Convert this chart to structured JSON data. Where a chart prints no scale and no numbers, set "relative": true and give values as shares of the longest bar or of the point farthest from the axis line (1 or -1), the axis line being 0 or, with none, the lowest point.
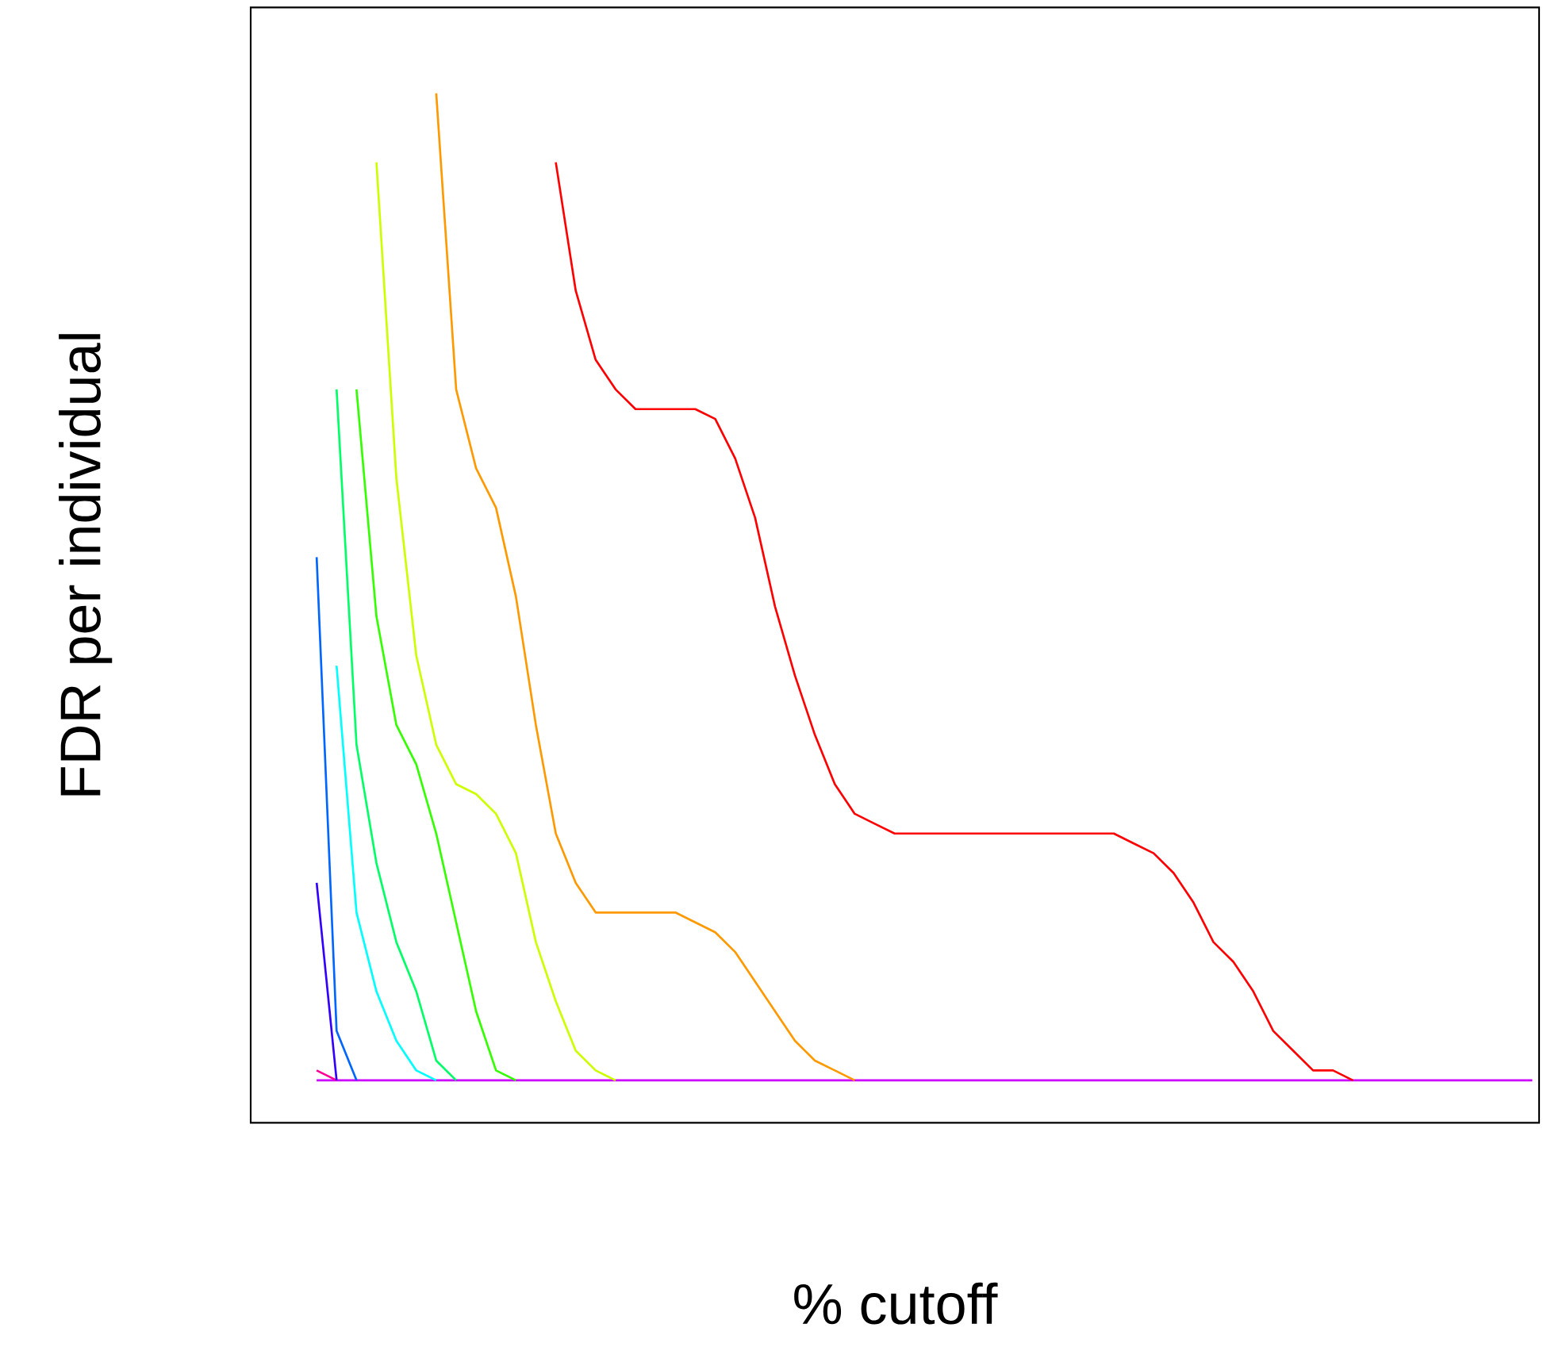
{
  "chart_data": {
    "type": "line",
    "xlabel": "% cutoff",
    "ylabel": "FDR per individual",
    "relative": true,
    "marker": "none",
    "line_style": "solid",
    "categories": [
      null,
      null,
      null,
      null,
      null,
      null,
      null,
      null,
      null,
      null,
      null,
      null,
      null,
      null,
      null,
      null,
      null,
      null,
      null,
      null,
      null,
      null,
      null,
      null,
      null,
      null,
      null,
      null,
      null,
      null,
      null,
      null,
      null,
      null,
      null,
      null,
      null,
      null,
      null,
      null,
      null,
      null,
      null,
      null,
      null,
      null,
      null,
      null,
      null,
      null,
      null,
      null,
      null,
      null,
      null,
      null,
      null,
      null,
      null,
      null,
      null,
      null,
      null
    ],
    "series": [
      {
        "color": "#ff0000",
        "values": [
          null,
          null,
          null,
          null,
          null,
          null,
          null,
          null,
          null,
          null,
          null,
          null,
          null,
          0.93,
          0.8,
          0.73,
          0.7,
          0.68,
          0.68,
          0.68,
          0.68,
          0.67,
          0.63,
          0.57,
          0.48,
          0.41,
          0.35,
          0.3,
          0.27,
          0.26,
          0.25,
          0.25,
          0.25,
          0.25,
          0.25,
          0.25,
          0.25,
          0.25,
          0.25,
          0.25,
          0.25,
          0.25,
          0.24,
          0.23,
          0.21,
          0.18,
          0.14,
          0.12,
          0.09,
          0.05,
          0.03,
          0.01,
          0.01,
          0,
          null,
          null,
          null,
          null,
          null,
          null,
          null,
          null,
          null
        ]
      },
      {
        "color": "#ff9900",
        "values": [
          null,
          null,
          null,
          null,
          null,
          null,
          null,
          1,
          0.7,
          0.62,
          0.58,
          0.49,
          0.36,
          0.25,
          0.2,
          0.17,
          0.17,
          0.17,
          0.17,
          0.17,
          0.16,
          0.15,
          0.13,
          0.1,
          0.07,
          0.04,
          0.02,
          0.01,
          0,
          null,
          null,
          null,
          null,
          null,
          null,
          null,
          null,
          null,
          null,
          null,
          null,
          null,
          null,
          null,
          null,
          null,
          null,
          null,
          null,
          null,
          null,
          null,
          null,
          null,
          null,
          null,
          null,
          null,
          null,
          null,
          null,
          null,
          null
        ]
      },
      {
        "color": "#ccff00",
        "values": [
          null,
          null,
          null,
          null,
          0.93,
          0.61,
          0.43,
          0.34,
          0.3,
          0.29,
          0.27,
          0.23,
          0.14,
          0.08,
          0.03,
          0.01,
          0,
          null,
          null,
          null,
          null,
          null,
          null,
          null,
          null,
          null,
          null,
          null,
          null,
          null,
          null,
          null,
          null,
          null,
          null,
          null,
          null,
          null,
          null,
          null,
          null,
          null,
          null,
          null,
          null,
          null,
          null,
          null,
          null,
          null,
          null,
          null,
          null,
          null,
          null,
          null,
          null,
          null,
          null,
          null,
          null,
          null,
          null
        ]
      },
      {
        "color": "#33ff00",
        "values": [
          null,
          null,
          null,
          0.7,
          0.47,
          0.36,
          0.32,
          0.25,
          0.16,
          0.07,
          0.01,
          0,
          null,
          null,
          null,
          null,
          null,
          null,
          null,
          null,
          null,
          null,
          null,
          null,
          null,
          null,
          null,
          null,
          null,
          null,
          null,
          null,
          null,
          null,
          null,
          null,
          null,
          null,
          null,
          null,
          null,
          null,
          null,
          null,
          null,
          null,
          null,
          null,
          null,
          null,
          null,
          null,
          null,
          null,
          null,
          null,
          null,
          null,
          null,
          null,
          null,
          null,
          null
        ]
      },
      {
        "color": "#00ff66",
        "values": [
          null,
          null,
          0.7,
          0.34,
          0.22,
          0.14,
          0.09,
          0.02,
          0,
          null,
          null,
          null,
          null,
          null,
          null,
          null,
          null,
          null,
          null,
          null,
          null,
          null,
          null,
          null,
          null,
          null,
          null,
          null,
          null,
          null,
          null,
          null,
          null,
          null,
          null,
          null,
          null,
          null,
          null,
          null,
          null,
          null,
          null,
          null,
          null,
          null,
          null,
          null,
          null,
          null,
          null,
          null,
          null,
          null,
          null,
          null,
          null,
          null,
          null,
          null,
          null,
          null,
          null
        ]
      },
      {
        "color": "#00ffff",
        "values": [
          null,
          null,
          0.42,
          0.17,
          0.09,
          0.04,
          0.01,
          0,
          null,
          null,
          null,
          null,
          null,
          null,
          null,
          null,
          null,
          null,
          null,
          null,
          null,
          null,
          null,
          null,
          null,
          null,
          null,
          null,
          null,
          null,
          null,
          null,
          null,
          null,
          null,
          null,
          null,
          null,
          null,
          null,
          null,
          null,
          null,
          null,
          null,
          null,
          null,
          null,
          null,
          null,
          null,
          null,
          null,
          null,
          null,
          null,
          null,
          null,
          null,
          null,
          null,
          null,
          null
        ]
      },
      {
        "color": "#0066ff",
        "values": [
          null,
          0.53,
          0.05,
          0,
          null,
          null,
          null,
          null,
          null,
          null,
          null,
          null,
          null,
          null,
          null,
          null,
          null,
          null,
          null,
          null,
          null,
          null,
          null,
          null,
          null,
          null,
          null,
          null,
          null,
          null,
          null,
          null,
          null,
          null,
          null,
          null,
          null,
          null,
          null,
          null,
          null,
          null,
          null,
          null,
          null,
          null,
          null,
          null,
          null,
          null,
          null,
          null,
          null,
          null,
          null,
          null,
          null,
          null,
          null,
          null,
          null,
          null,
          null
        ]
      },
      {
        "color": "#3300ff",
        "values": [
          null,
          0.2,
          0,
          null,
          null,
          null,
          null,
          null,
          null,
          null,
          null,
          null,
          null,
          null,
          null,
          null,
          null,
          null,
          null,
          null,
          null,
          null,
          null,
          null,
          null,
          null,
          null,
          null,
          null,
          null,
          null,
          null,
          null,
          null,
          null,
          null,
          null,
          null,
          null,
          null,
          null,
          null,
          null,
          null,
          null,
          null,
          null,
          null,
          null,
          null,
          null,
          null,
          null,
          null,
          null,
          null,
          null,
          null,
          null,
          null,
          null,
          null,
          null
        ]
      },
      {
        "color": "#ff0099",
        "values": [
          null,
          0.01,
          0,
          null,
          null,
          null,
          null,
          null,
          null,
          null,
          null,
          null,
          null,
          null,
          null,
          null,
          null,
          null,
          null,
          null,
          null,
          null,
          null,
          null,
          null,
          null,
          null,
          null,
          null,
          null,
          null,
          null,
          null,
          null,
          null,
          null,
          null,
          null,
          null,
          null,
          null,
          null,
          null,
          null,
          null,
          null,
          null,
          null,
          null,
          null,
          null,
          null,
          null,
          null,
          null,
          null,
          null,
          null,
          null,
          null,
          null,
          null,
          null
        ]
      },
      {
        "color": "#cc00ff",
        "values": [
          null,
          0,
          0,
          0,
          0,
          0,
          0,
          0,
          0,
          0,
          0,
          0,
          0,
          0,
          0,
          0,
          0,
          0,
          0,
          0,
          0,
          0,
          0,
          0,
          0,
          0,
          0,
          0,
          0,
          0,
          0,
          0,
          0,
          0,
          0,
          0,
          0,
          0,
          0,
          0,
          0,
          0,
          0,
          0,
          0,
          0,
          0,
          0,
          0,
          0,
          0,
          0,
          0,
          0,
          0,
          0,
          0,
          0,
          0,
          0,
          0,
          0,
          0
        ]
      }
    ]
  }
}
